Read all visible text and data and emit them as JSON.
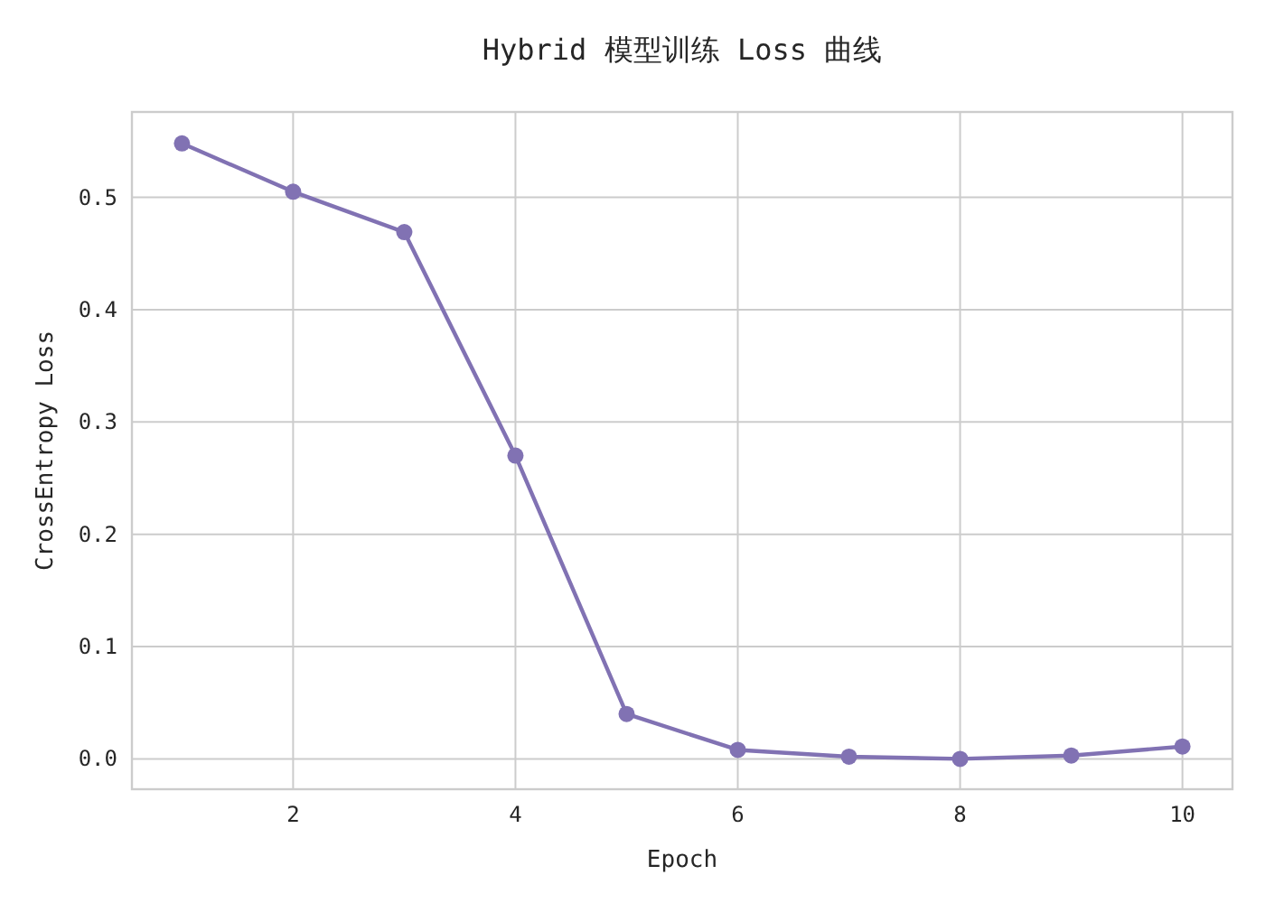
{
  "chart_data": {
    "type": "line",
    "title": "Hybrid 模型训练 Loss 曲线",
    "xlabel": "Epoch",
    "ylabel": "CrossEntropy Loss",
    "x": [
      1,
      2,
      3,
      4,
      5,
      6,
      7,
      8,
      9,
      10
    ],
    "series": [
      {
        "color": "#8172b3",
        "values": [
          0.548,
          0.505,
          0.469,
          0.27,
          0.04,
          0.008,
          0.002,
          0.0,
          0.003,
          0.011
        ]
      }
    ],
    "xlim": [
      0.55,
      10.45
    ],
    "ylim": [
      -0.027,
      0.576
    ],
    "xticks": [
      2,
      4,
      6,
      8,
      10
    ],
    "yticks": [
      {
        "value": 0,
        "label": "0.0"
      },
      0.1,
      0.2,
      0.3,
      0.4,
      0.5
    ],
    "grid": true,
    "marker": "circle",
    "line_style": "solid"
  }
}
